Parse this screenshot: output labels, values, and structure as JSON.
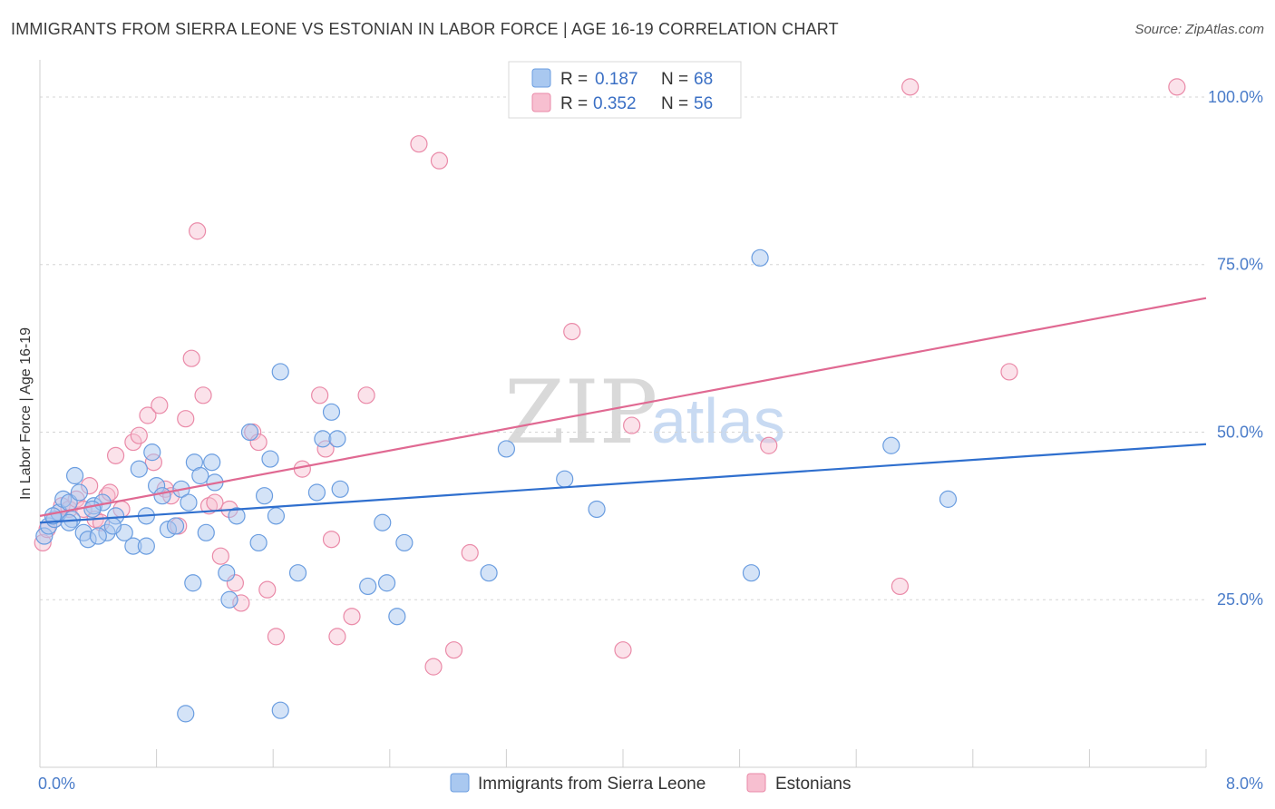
{
  "title": "IMMIGRANTS FROM SIERRA LEONE VS ESTONIAN IN LABOR FORCE | AGE 16-19 CORRELATION CHART",
  "source": "Source: ZipAtlas.com",
  "watermark": {
    "zip": "ZIP",
    "atlas": "atlas"
  },
  "colors": {
    "blue_fill": "#a9c8f0",
    "blue_stroke": "#6a9de0",
    "blue_line": "#2f6fce",
    "pink_fill": "#f7bfd0",
    "pink_stroke": "#ea8aa8",
    "pink_line": "#e06992",
    "tick_text": "#4a7cc9",
    "grid": "#d5d5d5"
  },
  "legend": {
    "rows": [
      {
        "r_label": "R =",
        "r_value": "0.187",
        "n_label": "N =",
        "n_value": "68"
      },
      {
        "r_label": "R =",
        "r_value": "0.352",
        "n_label": "N =",
        "n_value": "56"
      }
    ]
  },
  "chart_data": {
    "type": "scatter",
    "title": "IMMIGRANTS FROM SIERRA LEONE VS ESTONIAN IN LABOR FORCE | AGE 16-19 CORRELATION CHART",
    "xlabel": "",
    "ylabel": "In Labor Force | Age 16-19",
    "xlim": [
      0,
      8
    ],
    "ylim": [
      0,
      105
    ],
    "x_tick_labels": [
      "0.0%",
      "8.0%"
    ],
    "y_ticks": [
      25,
      50,
      75,
      100
    ],
    "y_tick_labels": [
      "25.0%",
      "50.0%",
      "75.0%",
      "100.0%"
    ],
    "grid": true,
    "legend_position": "bottom",
    "series": [
      {
        "name": "Immigrants from Sierra Leone",
        "color": "#6a9de0",
        "trend": {
          "x": [
            0,
            8
          ],
          "y": [
            36.5,
            48.2
          ]
        },
        "points": [
          [
            0.03,
            34.5
          ],
          [
            0.06,
            36.0
          ],
          [
            0.1,
            37.0
          ],
          [
            0.13,
            38.0
          ],
          [
            0.16,
            40.0
          ],
          [
            0.2,
            39.5
          ],
          [
            0.22,
            37.0
          ],
          [
            0.24,
            43.5
          ],
          [
            0.27,
            41.0
          ],
          [
            0.3,
            35.0
          ],
          [
            0.33,
            34.0
          ],
          [
            0.37,
            39.0
          ],
          [
            0.43,
            39.5
          ],
          [
            0.46,
            35.0
          ],
          [
            0.52,
            37.5
          ],
          [
            0.58,
            35.0
          ],
          [
            0.64,
            33.0
          ],
          [
            0.68,
            44.5
          ],
          [
            0.73,
            37.5
          ],
          [
            0.77,
            47.0
          ],
          [
            0.8,
            42.0
          ],
          [
            0.84,
            40.5
          ],
          [
            0.88,
            35.5
          ],
          [
            0.93,
            36.0
          ],
          [
            0.97,
            41.5
          ],
          [
            1.02,
            39.5
          ],
          [
            1.06,
            45.5
          ],
          [
            1.1,
            43.5
          ],
          [
            1.14,
            35.0
          ],
          [
            1.18,
            45.5
          ],
          [
            1.2,
            42.5
          ],
          [
            1.28,
            29.0
          ],
          [
            1.3,
            25.0
          ],
          [
            1.35,
            37.5
          ],
          [
            1.44,
            50.0
          ],
          [
            1.5,
            33.5
          ],
          [
            1.54,
            40.5
          ],
          [
            1.58,
            46.0
          ],
          [
            1.62,
            37.5
          ],
          [
            1.65,
            59.0
          ],
          [
            1.77,
            29.0
          ],
          [
            1.9,
            41.0
          ],
          [
            1.94,
            49.0
          ],
          [
            2.0,
            53.0
          ],
          [
            2.04,
            49.0
          ],
          [
            2.06,
            41.5
          ],
          [
            2.25,
            27.0
          ],
          [
            2.35,
            36.5
          ],
          [
            2.38,
            27.5
          ],
          [
            2.45,
            22.5
          ],
          [
            2.5,
            33.5
          ],
          [
            3.08,
            29.0
          ],
          [
            3.2,
            47.5
          ],
          [
            3.6,
            43.0
          ],
          [
            3.82,
            38.5
          ],
          [
            4.88,
            29.0
          ],
          [
            4.94,
            76.0
          ],
          [
            5.84,
            48.0
          ],
          [
            6.23,
            40.0
          ],
          [
            1.05,
            27.5
          ],
          [
            0.73,
            33.0
          ],
          [
            0.2,
            36.5
          ],
          [
            0.09,
            37.5
          ],
          [
            1.0,
            8.0
          ],
          [
            1.65,
            8.5
          ],
          [
            0.4,
            34.5
          ],
          [
            0.36,
            38.5
          ],
          [
            0.5,
            36.0
          ]
        ]
      },
      {
        "name": "Estonians",
        "color": "#ea8aa8",
        "trend": {
          "x": [
            0,
            8
          ],
          "y": [
            37.5,
            70.0
          ]
        },
        "points": [
          [
            0.02,
            33.5
          ],
          [
            0.05,
            35.5
          ],
          [
            0.1,
            37.0
          ],
          [
            0.15,
            39.0
          ],
          [
            0.2,
            38.5
          ],
          [
            0.25,
            40.0
          ],
          [
            0.3,
            38.5
          ],
          [
            0.34,
            42.0
          ],
          [
            0.38,
            37.0
          ],
          [
            0.42,
            36.5
          ],
          [
            0.46,
            40.5
          ],
          [
            0.52,
            46.5
          ],
          [
            0.56,
            38.5
          ],
          [
            0.64,
            48.5
          ],
          [
            0.68,
            49.5
          ],
          [
            0.74,
            52.5
          ],
          [
            0.78,
            45.5
          ],
          [
            0.82,
            54.0
          ],
          [
            0.86,
            41.5
          ],
          [
            0.9,
            40.5
          ],
          [
            0.95,
            36.0
          ],
          [
            1.0,
            52.0
          ],
          [
            1.04,
            61.0
          ],
          [
            1.08,
            80.0
          ],
          [
            1.12,
            55.5
          ],
          [
            1.16,
            39.0
          ],
          [
            1.2,
            39.5
          ],
          [
            1.24,
            31.5
          ],
          [
            1.3,
            38.5
          ],
          [
            1.34,
            27.5
          ],
          [
            1.38,
            24.5
          ],
          [
            1.46,
            50.0
          ],
          [
            1.5,
            48.5
          ],
          [
            1.56,
            26.5
          ],
          [
            1.62,
            19.5
          ],
          [
            1.8,
            44.5
          ],
          [
            1.92,
            55.5
          ],
          [
            1.96,
            47.5
          ],
          [
            2.0,
            34.0
          ],
          [
            2.04,
            19.5
          ],
          [
            2.14,
            22.5
          ],
          [
            2.24,
            55.5
          ],
          [
            2.6,
            93.0
          ],
          [
            2.7,
            15.0
          ],
          [
            2.74,
            90.5
          ],
          [
            2.84,
            17.5
          ],
          [
            2.95,
            32.0
          ],
          [
            3.65,
            65.0
          ],
          [
            4.0,
            17.5
          ],
          [
            4.06,
            51.0
          ],
          [
            5.0,
            48.0
          ],
          [
            5.9,
            27.0
          ],
          [
            5.97,
            101.5
          ],
          [
            6.65,
            59.0
          ],
          [
            7.8,
            101.5
          ],
          [
            0.48,
            41.0
          ]
        ]
      }
    ]
  },
  "bottom_legend": [
    "Immigrants from Sierra Leone",
    "Estonians"
  ]
}
